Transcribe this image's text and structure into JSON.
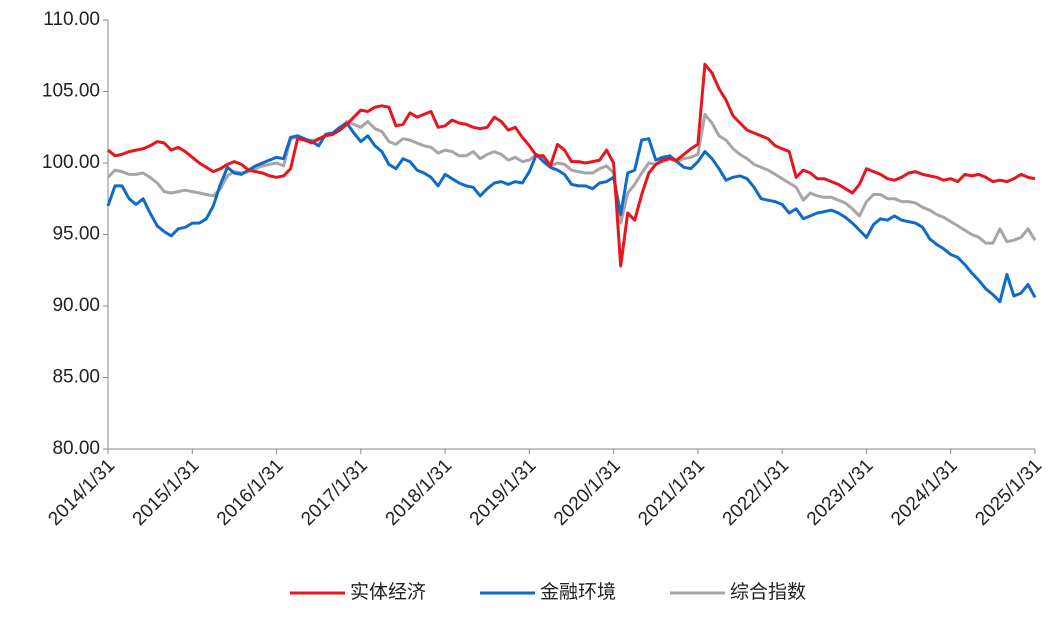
{
  "chart_data": {
    "type": "line",
    "x": [
      "2014/1/31",
      "2014/2/28",
      "2014/3/31",
      "2014/4/30",
      "2014/5/31",
      "2014/6/30",
      "2014/7/31",
      "2014/8/31",
      "2014/9/30",
      "2014/10/31",
      "2014/11/30",
      "2014/12/31",
      "2015/1/31",
      "2015/2/28",
      "2015/3/31",
      "2015/4/30",
      "2015/5/31",
      "2015/6/30",
      "2015/7/31",
      "2015/8/31",
      "2015/9/30",
      "2015/10/31",
      "2015/11/30",
      "2015/12/31",
      "2016/1/31",
      "2016/2/29",
      "2016/3/31",
      "2016/4/30",
      "2016/5/31",
      "2016/6/30",
      "2016/7/31",
      "2016/8/31",
      "2016/9/30",
      "2016/10/31",
      "2016/11/30",
      "2016/12/31",
      "2017/1/31",
      "2017/2/28",
      "2017/3/31",
      "2017/4/30",
      "2017/5/31",
      "2017/6/30",
      "2017/7/31",
      "2017/8/31",
      "2017/9/30",
      "2017/10/31",
      "2017/11/30",
      "2017/12/31",
      "2018/1/31",
      "2018/2/28",
      "2018/3/31",
      "2018/4/30",
      "2018/5/31",
      "2018/6/30",
      "2018/7/31",
      "2018/8/31",
      "2018/9/30",
      "2018/10/31",
      "2018/11/30",
      "2018/12/31",
      "2019/1/31",
      "2019/2/28",
      "2019/3/31",
      "2019/4/30",
      "2019/5/31",
      "2019/6/30",
      "2019/7/31",
      "2019/8/31",
      "2019/9/30",
      "2019/10/31",
      "2019/11/30",
      "2019/12/31",
      "2020/1/31",
      "2020/2/29",
      "2020/3/31",
      "2020/4/30",
      "2020/5/31",
      "2020/6/30",
      "2020/7/31",
      "2020/8/31",
      "2020/9/30",
      "2020/10/31",
      "2020/11/30",
      "2020/12/31",
      "2021/1/31",
      "2021/2/28",
      "2021/3/31",
      "2021/4/30",
      "2021/5/31",
      "2021/6/30",
      "2021/7/31",
      "2021/8/31",
      "2021/9/30",
      "2021/10/31",
      "2021/11/30",
      "2021/12/31",
      "2022/1/31",
      "2022/2/28",
      "2022/3/31",
      "2022/4/30",
      "2022/5/31",
      "2022/6/30",
      "2022/7/31",
      "2022/8/31",
      "2022/9/30",
      "2022/10/31",
      "2022/11/30",
      "2022/12/31",
      "2023/1/31",
      "2023/2/28",
      "2023/3/31",
      "2023/4/30",
      "2023/5/31",
      "2023/6/30",
      "2023/7/31",
      "2023/8/31",
      "2023/9/30",
      "2023/10/31",
      "2023/11/30",
      "2023/12/31",
      "2024/1/31",
      "2024/2/29",
      "2024/3/31",
      "2024/4/30",
      "2024/5/31",
      "2024/6/30",
      "2024/7/31",
      "2024/8/31",
      "2024/9/30",
      "2024/10/31",
      "2024/11/30",
      "2024/12/31",
      "2025/1/31"
    ],
    "series": [
      {
        "name": "实体经济",
        "color": "#e8141e",
        "values": [
          100.9,
          100.5,
          100.6,
          100.8,
          100.9,
          101.0,
          101.2,
          101.5,
          101.4,
          100.9,
          101.1,
          100.8,
          100.4,
          100.0,
          99.7,
          99.4,
          99.6,
          99.9,
          100.1,
          99.9,
          99.5,
          99.4,
          99.3,
          99.1,
          99.0,
          99.1,
          99.6,
          101.7,
          101.6,
          101.4,
          101.7,
          101.9,
          102.0,
          102.3,
          102.7,
          103.2,
          103.7,
          103.6,
          103.9,
          104.0,
          103.9,
          102.6,
          102.7,
          103.5,
          103.2,
          103.4,
          103.6,
          102.5,
          102.6,
          103.0,
          102.8,
          102.7,
          102.5,
          102.4,
          102.5,
          103.2,
          102.9,
          102.3,
          102.5,
          101.8,
          101.2,
          100.5,
          100.5,
          99.8,
          101.3,
          100.9,
          100.1,
          100.1,
          100.0,
          100.1,
          100.2,
          100.9,
          100.0,
          92.8,
          96.5,
          96.0,
          97.8,
          99.3,
          99.9,
          100.2,
          100.3,
          100.2,
          100.6,
          101.0,
          101.3,
          106.9,
          106.3,
          105.2,
          104.4,
          103.3,
          102.8,
          102.3,
          102.1,
          101.9,
          101.7,
          101.2,
          101.0,
          100.8,
          99.0,
          99.5,
          99.3,
          98.9,
          98.9,
          98.7,
          98.5,
          98.2,
          97.9,
          98.5,
          99.6,
          99.4,
          99.2,
          98.9,
          98.8,
          99.0,
          99.3,
          99.4,
          99.2,
          99.1,
          99.0,
          98.8,
          98.9,
          98.7,
          99.2,
          99.1,
          99.2,
          99.0,
          98.7,
          98.8,
          98.7,
          98.9,
          99.2,
          99.0,
          98.9
        ]
      },
      {
        "name": "金融环境",
        "color": "#0f6bc7",
        "values": [
          97.0,
          98.4,
          98.4,
          97.5,
          97.1,
          97.5,
          96.5,
          95.6,
          95.2,
          94.9,
          95.4,
          95.5,
          95.8,
          95.8,
          96.1,
          97.0,
          98.5,
          99.7,
          99.3,
          99.2,
          99.5,
          99.8,
          100.0,
          100.2,
          100.4,
          100.3,
          101.8,
          101.9,
          101.7,
          101.5,
          101.2,
          102.0,
          102.1,
          102.5,
          102.8,
          102.1,
          101.5,
          101.9,
          101.2,
          100.8,
          99.9,
          99.6,
          100.3,
          100.1,
          99.5,
          99.3,
          99.0,
          98.4,
          99.2,
          98.9,
          98.6,
          98.4,
          98.3,
          97.7,
          98.2,
          98.6,
          98.7,
          98.5,
          98.7,
          98.6,
          99.4,
          100.6,
          100.1,
          99.7,
          99.5,
          99.2,
          98.5,
          98.4,
          98.4,
          98.2,
          98.6,
          98.7,
          99.0,
          96.4,
          99.3,
          99.5,
          101.6,
          101.7,
          100.2,
          100.4,
          100.5,
          100.1,
          99.7,
          99.6,
          100.1,
          100.8,
          100.3,
          99.6,
          98.8,
          99.0,
          99.1,
          98.9,
          98.3,
          97.5,
          97.4,
          97.3,
          97.1,
          96.5,
          96.8,
          96.1,
          96.3,
          96.5,
          96.6,
          96.7,
          96.5,
          96.2,
          95.8,
          95.3,
          94.8,
          95.7,
          96.1,
          96.0,
          96.3,
          96.0,
          95.9,
          95.8,
          95.5,
          94.7,
          94.3,
          94.0,
          93.6,
          93.4,
          92.9,
          92.3,
          91.8,
          91.2,
          90.8,
          90.3,
          92.2,
          90.7,
          90.9,
          91.5,
          90.6
        ]
      },
      {
        "name": "综合指数",
        "color": "#a6a6a6",
        "values": [
          99.0,
          99.5,
          99.4,
          99.2,
          99.2,
          99.3,
          99.0,
          98.6,
          98.0,
          97.9,
          98.0,
          98.1,
          98.0,
          97.9,
          97.8,
          97.7,
          98.2,
          99.1,
          99.4,
          99.3,
          99.4,
          99.6,
          99.8,
          99.9,
          100.0,
          99.8,
          101.7,
          101.8,
          101.6,
          101.6,
          101.6,
          102.0,
          102.1,
          102.4,
          102.9,
          102.7,
          102.5,
          102.9,
          102.4,
          102.2,
          101.5,
          101.3,
          101.7,
          101.6,
          101.4,
          101.2,
          101.1,
          100.7,
          100.9,
          100.8,
          100.5,
          100.5,
          100.8,
          100.3,
          100.6,
          100.8,
          100.6,
          100.2,
          100.4,
          100.1,
          100.2,
          100.6,
          100.3,
          99.8,
          100.0,
          99.9,
          99.5,
          99.4,
          99.3,
          99.3,
          99.6,
          99.8,
          99.3,
          95.8,
          97.9,
          98.5,
          99.3,
          100.0,
          99.9,
          100.1,
          100.3,
          100.1,
          100.3,
          100.4,
          100.6,
          103.4,
          102.8,
          101.9,
          101.6,
          101.0,
          100.6,
          100.3,
          99.9,
          99.7,
          99.5,
          99.2,
          98.9,
          98.6,
          98.3,
          97.4,
          97.9,
          97.7,
          97.6,
          97.6,
          97.4,
          97.2,
          96.8,
          96.3,
          97.3,
          97.8,
          97.8,
          97.5,
          97.5,
          97.3,
          97.3,
          97.2,
          96.9,
          96.7,
          96.4,
          96.2,
          95.9,
          95.6,
          95.3,
          95.0,
          94.8,
          94.4,
          94.4,
          95.4,
          94.5,
          94.6,
          94.8,
          95.4,
          94.6
        ]
      }
    ],
    "ylim": [
      80,
      110
    ],
    "yticks": [
      {
        "value": 80,
        "label": "80.00"
      },
      {
        "value": 85,
        "label": "85.00"
      },
      {
        "value": 90,
        "label": "90.00"
      },
      {
        "value": 95,
        "label": "95.00"
      },
      {
        "value": 100,
        "label": "100.00"
      },
      {
        "value": 105,
        "label": "105.00"
      },
      {
        "value": 110,
        "label": "110.00"
      }
    ],
    "grid": false,
    "legend": "bottom"
  }
}
